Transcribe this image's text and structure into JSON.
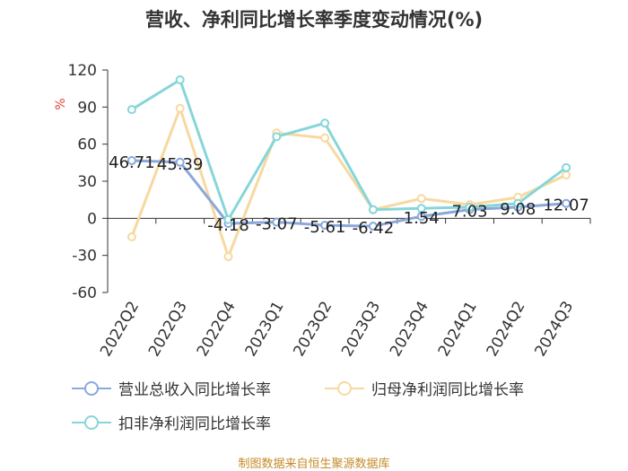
{
  "chart_data": {
    "type": "line",
    "title": "营收、净利同比增长率季度变动情况(%)",
    "ylabel": "%",
    "xlabel": "",
    "categories": [
      "2022Q2",
      "2022Q3",
      "2022Q4",
      "2023Q1",
      "2023Q2",
      "2023Q3",
      "2023Q4",
      "2024Q1",
      "2024Q2",
      "2024Q3"
    ],
    "ylim": [
      -60,
      120
    ],
    "yticks": [
      120,
      90,
      60,
      30,
      0,
      -30,
      -60
    ],
    "grid": false,
    "legend_position": "bottom",
    "series": [
      {
        "name": "营业总收入同比增长率",
        "color": "#8aa8dc",
        "values": [
          46.71,
          45.39,
          -4.18,
          -3.07,
          -5.61,
          -6.42,
          1.54,
          7.03,
          9.08,
          12.07
        ],
        "labels": [
          "46.71",
          "45.39",
          "-4.18",
          "-3.07",
          "-5.61",
          "-6.42",
          "1.54",
          "7.03",
          "9.08",
          "12.07"
        ]
      },
      {
        "name": "归母净利润同比增长率",
        "color": "#f7d9a0",
        "values": [
          -15,
          89,
          -31,
          69,
          65,
          7,
          16,
          11,
          17,
          35
        ]
      },
      {
        "name": "扣非净利润同比增长率",
        "color": "#86d6d9",
        "values": [
          88,
          112,
          -1,
          66,
          77,
          7,
          8,
          9,
          12,
          41
        ]
      }
    ]
  },
  "source": "制图数据来自恒生聚源数据库"
}
